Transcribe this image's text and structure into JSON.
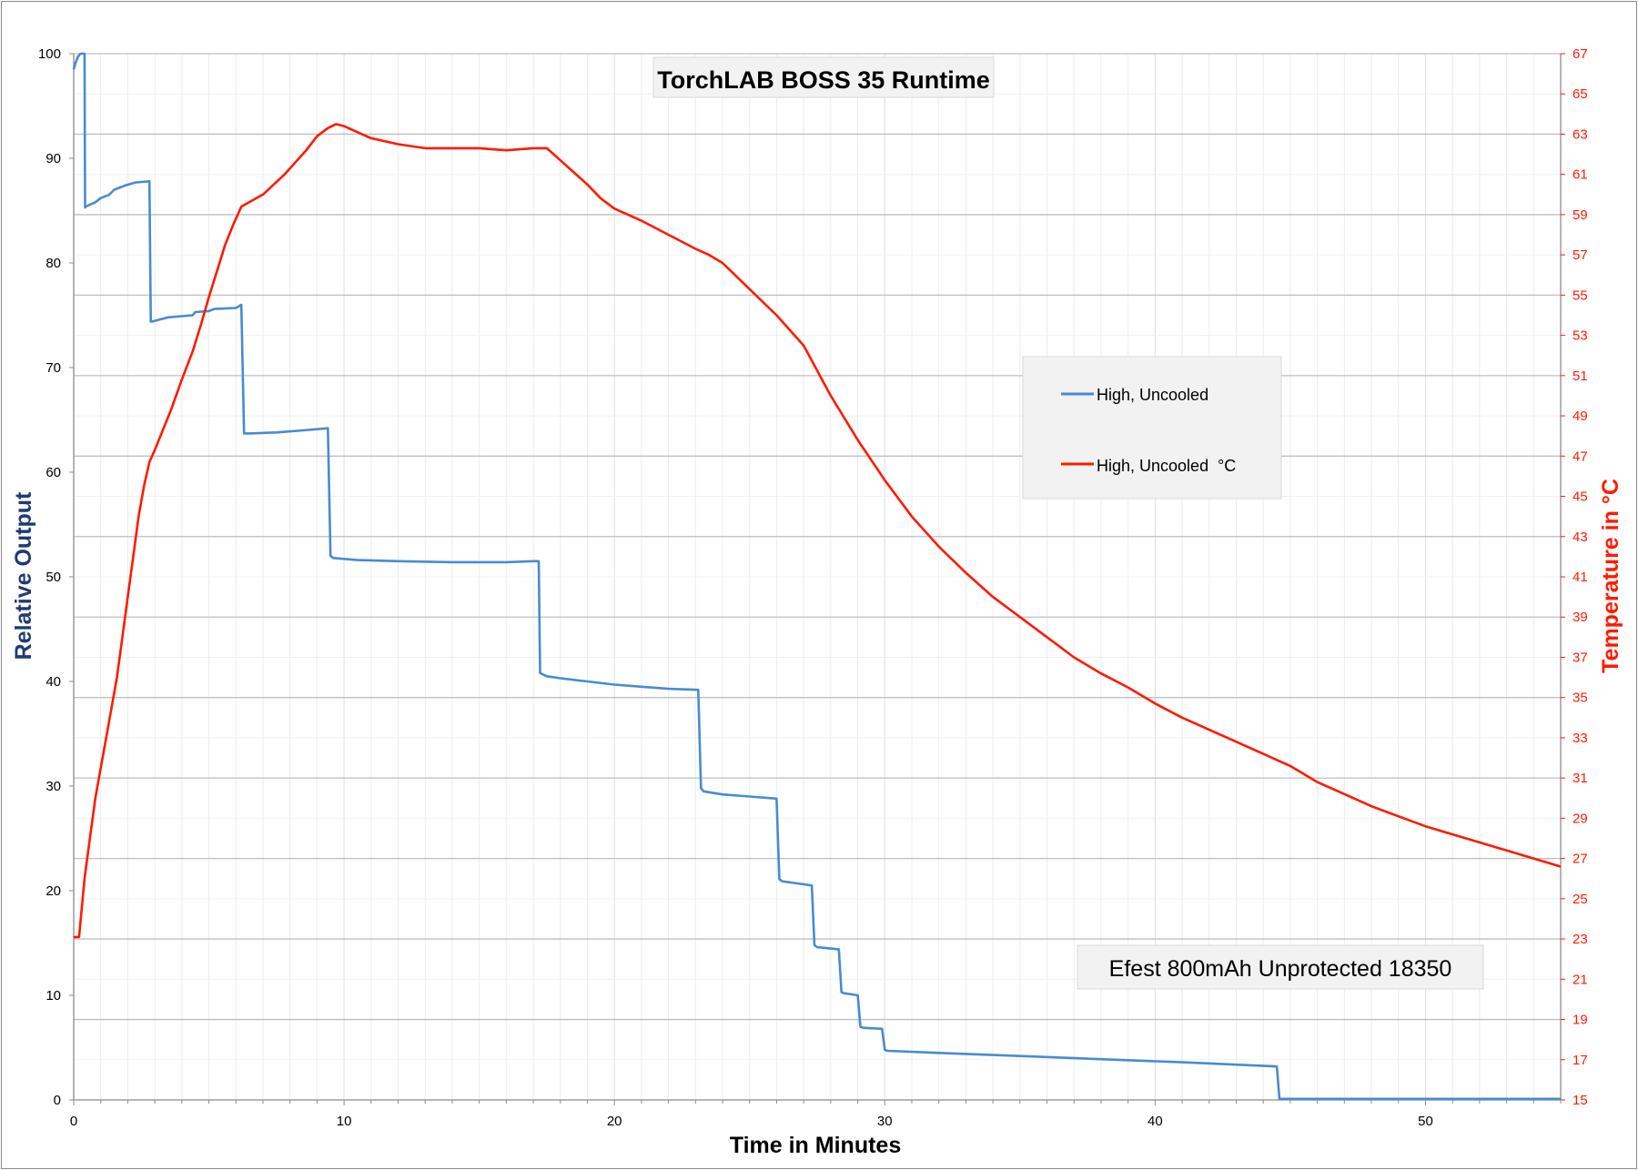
{
  "chart_data": {
    "type": "line",
    "title": "TorchLAB BOSS 35 Runtime",
    "annotation": "Efest 800mAh Unprotected 18350",
    "xlabel": "Time in Minutes",
    "ylabel": "Relative Output",
    "y2label": "Temperature in °C",
    "xlim": [
      0,
      55
    ],
    "ylim": [
      0,
      100
    ],
    "y2lim": [
      15,
      67
    ],
    "x_ticks": [
      "0",
      "10",
      "20",
      "30",
      "40",
      "50"
    ],
    "y_ticks": [
      "0",
      "10",
      "20",
      "30",
      "40",
      "50",
      "60",
      "70",
      "80",
      "90",
      "100"
    ],
    "y2_ticks": [
      "15",
      "17",
      "19",
      "21",
      "23",
      "25",
      "27",
      "29",
      "31",
      "33",
      "35",
      "37",
      "39",
      "41",
      "43",
      "45",
      "47",
      "49",
      "51",
      "53",
      "55",
      "57",
      "59",
      "61",
      "63",
      "65",
      "67"
    ],
    "grid": true,
    "legend_position": "right",
    "colors": {
      "output": "#4a8ad0",
      "temperature": "#ff1a00",
      "right_axis": "#ff1a00",
      "left_label": "#1f3b73"
    },
    "series": [
      {
        "name": "High, Uncooled",
        "axis": "left",
        "x": [
          0,
          0.05,
          0.15,
          0.25,
          0.4,
          0.42,
          0.45,
          0.8,
          1.0,
          1.3,
          1.5,
          1.9,
          2.3,
          2.8,
          2.85,
          2.9,
          3.5,
          4.4,
          4.5,
          5.0,
          5.2,
          6.0,
          6.2,
          6.3,
          6.5,
          7.5,
          8.5,
          9.4,
          9.5,
          9.6,
          10.5,
          12,
          14,
          16,
          17.0,
          17.2,
          17.25,
          17.5,
          18,
          19,
          20,
          21,
          22,
          23.1,
          23.2,
          23.3,
          24,
          25,
          26.0,
          26.1,
          26.2,
          27.3,
          27.4,
          27.5,
          28.3,
          28.4,
          28.5,
          29.0,
          29.1,
          29.2,
          29.9,
          30.0,
          30.1,
          32,
          35,
          38,
          41,
          44.5,
          44.6,
          44.7,
          55
        ],
        "y": [
          98.5,
          99.0,
          99.7,
          100,
          100,
          85.3,
          85.4,
          85.8,
          86.2,
          86.5,
          87.0,
          87.4,
          87.7,
          87.8,
          74.4,
          74.4,
          74.8,
          75.0,
          75.3,
          75.4,
          75.6,
          75.7,
          76.0,
          63.7,
          63.7,
          63.8,
          64.0,
          64.2,
          52.0,
          51.8,
          51.6,
          51.5,
          51.4,
          51.4,
          51.5,
          51.5,
          40.8,
          40.5,
          40.3,
          40.0,
          39.7,
          39.5,
          39.3,
          39.2,
          29.8,
          29.5,
          29.2,
          29.0,
          28.8,
          21.1,
          20.9,
          20.5,
          14.8,
          14.6,
          14.4,
          10.3,
          10.2,
          10.0,
          7.0,
          6.9,
          6.8,
          4.8,
          4.7,
          4.5,
          4.2,
          3.9,
          3.6,
          3.2,
          0.1,
          0.1,
          0.1
        ]
      },
      {
        "name": "High, Uncooled  °C",
        "axis": "right",
        "x": [
          0,
          0.2,
          0.4,
          0.6,
          0.8,
          1.0,
          1.2,
          1.4,
          1.6,
          1.8,
          2.0,
          2.2,
          2.4,
          2.6,
          2.8,
          3.0,
          3.3,
          3.6,
          4.0,
          4.4,
          4.7,
          5.0,
          5.3,
          5.6,
          5.9,
          6.2,
          6.6,
          7.0,
          7.4,
          7.8,
          8.2,
          8.6,
          9.0,
          9.4,
          9.7,
          10.0,
          10.5,
          11,
          12,
          13,
          14,
          15,
          16,
          17,
          17.5,
          18,
          18.5,
          19,
          19.5,
          20,
          21,
          22,
          23,
          23.5,
          24,
          25,
          26,
          27,
          28,
          29,
          30,
          31,
          32,
          33,
          34,
          35,
          36,
          37,
          38,
          39,
          40,
          41,
          42,
          43,
          44,
          45,
          46,
          47,
          48,
          49,
          50,
          51,
          52,
          53,
          54,
          55
        ],
        "y": [
          23.1,
          23.1,
          26.0,
          28.0,
          30.0,
          31.5,
          33.0,
          34.5,
          36.0,
          38.0,
          40.0,
          42.0,
          44.0,
          45.5,
          46.7,
          47.3,
          48.3,
          49.3,
          50.8,
          52.2,
          53.5,
          54.9,
          56.2,
          57.5,
          58.5,
          59.4,
          59.7,
          60.0,
          60.5,
          61.0,
          61.6,
          62.2,
          62.9,
          63.3,
          63.5,
          63.4,
          63.1,
          62.8,
          62.5,
          62.3,
          62.3,
          62.3,
          62.2,
          62.3,
          62.3,
          61.7,
          61.1,
          60.5,
          59.8,
          59.3,
          58.7,
          58.0,
          57.3,
          57.0,
          56.6,
          55.3,
          54.0,
          52.5,
          50.0,
          47.8,
          45.8,
          44.0,
          42.5,
          41.2,
          40.0,
          39.0,
          38.0,
          37.0,
          36.2,
          35.5,
          34.7,
          34.0,
          33.4,
          32.8,
          32.2,
          31.6,
          30.8,
          30.2,
          29.6,
          29.1,
          28.6,
          28.2,
          27.8,
          27.4,
          27.0,
          26.6
        ]
      }
    ]
  }
}
